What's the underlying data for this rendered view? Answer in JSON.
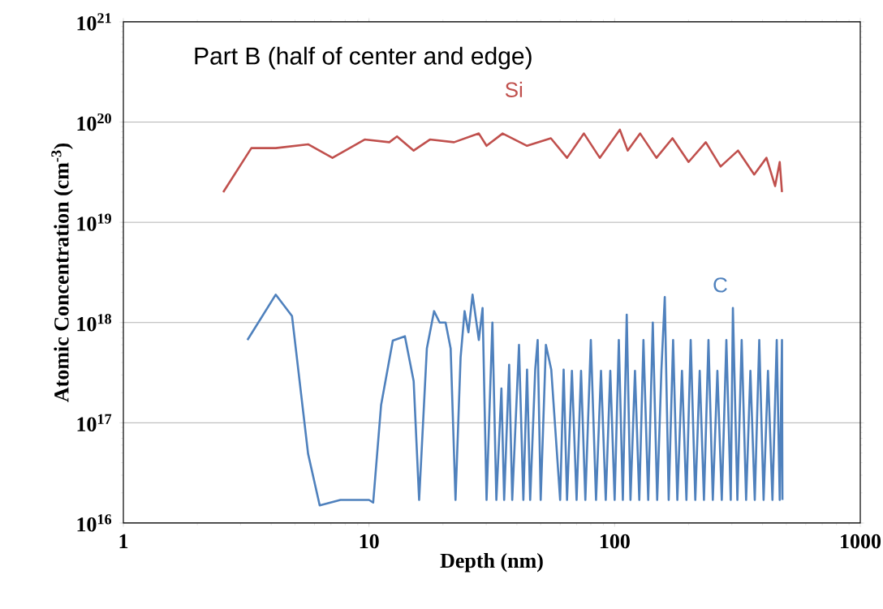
{
  "chart_data": {
    "type": "line",
    "title": "Part B (half of center and edge)",
    "xlabel": "Depth (nm)",
    "ylabel": "Atomic Concentration (cm$^{-3}$)",
    "log": "xy",
    "grid": "y",
    "marker": "none",
    "line_style": "solid",
    "xlim": [
      1,
      1000
    ],
    "ylim": [
      1e+16,
      1e+21
    ],
    "xticks": [
      1,
      10,
      100,
      1000
    ],
    "yticks": [
      {
        "value": 1e+16,
        "label": "10$^{16}$"
      },
      {
        "value": 1e+17,
        "label": "10$^{17}$"
      },
      {
        "value": 1e+18,
        "label": "10$^{18}$"
      },
      {
        "value": 1e+19,
        "label": "10$^{19}$"
      },
      {
        "value": 1e+20,
        "label": "10$^{20}$"
      },
      {
        "value": 1e+21,
        "label": "10$^{21}$"
      }
    ],
    "series": [
      {
        "name": "Si",
        "color": "#c0504d",
        "x": [
          2.55,
          3.32,
          4.17,
          5.65,
          7.1,
          9.6,
          12.1,
          13.0,
          15.2,
          17.7,
          22.2,
          28.0,
          30.1,
          35.0,
          44.0,
          55.0,
          64,
          75,
          87,
          105,
          113,
          127,
          148,
          172,
          200,
          235,
          270,
          318,
          370,
          415,
          450,
          470,
          480
        ],
        "values": [
          2e+19,
          5.5e+19,
          5.5e+19,
          6e+19,
          4.4e+19,
          6.7e+19,
          6.3e+19,
          7.2e+19,
          5.2e+19,
          6.7e+19,
          6.3e+19,
          7.7e+19,
          5.8e+19,
          7.7e+19,
          5.8e+19,
          6.9e+19,
          4.4e+19,
          7.7e+19,
          4.4e+19,
          8.4e+19,
          5.2e+19,
          7.7e+19,
          4.4e+19,
          6.9e+19,
          4e+19,
          6.3e+19,
          3.6e+19,
          5.2e+19,
          3e+19,
          4.4e+19,
          2.3e+19,
          4e+19,
          2e+19
        ]
      },
      {
        "name": "C",
        "color": "#4f81bd",
        "x": [
          3.2,
          4.17,
          4.86,
          5.65,
          6.3,
          7.65,
          10.0,
          10.4,
          11.2,
          12.5,
          14.0,
          15.2,
          16.0,
          17.2,
          18.4,
          19.4,
          20.5,
          21.5,
          22.5,
          23.6,
          24.5,
          25.4,
          26.4,
          28.0,
          29.0,
          30.1,
          31.8,
          33,
          34.6,
          35.5,
          37.2,
          38.3,
          40.8,
          42.5,
          44,
          45.3,
          47.5,
          48.6,
          50,
          52.5,
          55.2,
          60,
          62,
          64,
          67,
          70,
          73,
          76,
          80,
          84,
          88,
          92,
          96,
          100,
          104,
          108,
          112,
          116,
          121,
          126,
          131,
          137,
          143,
          149,
          155,
          160,
          166,
          173,
          180,
          188,
          196,
          204,
          213,
          222,
          231,
          241,
          251,
          262,
          273,
          285,
          297,
          303,
          316,
          329,
          343,
          357,
          372,
          388,
          404,
          421,
          439,
          457,
          470,
          480,
          482
        ],
        "values": [
          6.7e+17,
          1.9e+18,
          1.16e+18,
          4.9e+16,
          1.5e+16,
          1.7e+16,
          1.7e+16,
          1.6e+16,
          1.5e+17,
          6.6e+17,
          7.3e+17,
          2.6e+17,
          1.7e+16,
          5.5e+17,
          1.3e+18,
          1e+18,
          1e+18,
          5.5e+17,
          1.7e+16,
          4.5e+17,
          1.3e+18,
          8e+17,
          1.9e+18,
          6.7e+17,
          1.4e+18,
          1.7e+16,
          1e+18,
          1.7e+16,
          2.2e+17,
          1.7e+16,
          3.8e+17,
          1.7e+16,
          6e+17,
          1.7e+16,
          3.4e+17,
          1.7e+16,
          3.4e+17,
          6.7e+17,
          1.7e+16,
          6e+17,
          3.4e+17,
          1.7e+16,
          3.4e+17,
          1.7e+16,
          3.3e+17,
          1.7e+16,
          3.3e+17,
          1.7e+16,
          6.7e+17,
          1.7e+16,
          3.3e+17,
          1.7e+16,
          3.3e+17,
          1.7e+16,
          6.7e+17,
          1.7e+16,
          1.2e+18,
          1.7e+16,
          3.3e+17,
          1.7e+16,
          6.7e+17,
          1.7e+16,
          1e+18,
          1.7e+16,
          3.3e+17,
          1.8e+18,
          1.7e+16,
          6.7e+17,
          1.7e+16,
          3.3e+17,
          1.7e+16,
          6.7e+17,
          1.7e+16,
          3.3e+17,
          1.7e+16,
          6.7e+17,
          1.7e+16,
          3.3e+17,
          1.7e+16,
          6.7e+17,
          1.7e+16,
          1.4e+18,
          1.7e+16,
          6.7e+17,
          1.7e+16,
          3.3e+17,
          1.7e+16,
          6.7e+17,
          1.7e+16,
          3.3e+17,
          1.7e+16,
          6.7e+17,
          1.7e+16,
          6.7e+17,
          1.7e+16
        ]
      }
    ]
  }
}
